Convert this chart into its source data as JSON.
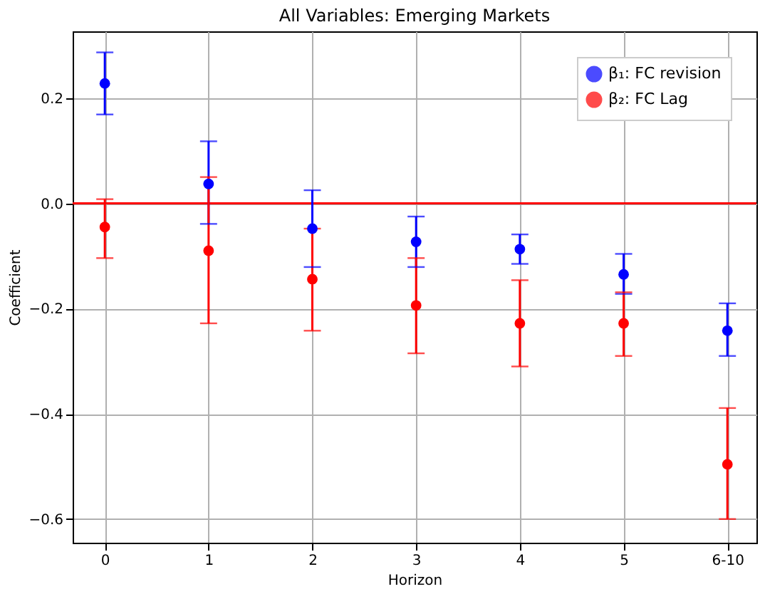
{
  "chart_data": {
    "type": "scatter",
    "title": "All Variables: Emerging Markets",
    "xlabel": "Horizon",
    "ylabel": "Coefficient",
    "categories": [
      "0",
      "1",
      "2",
      "3",
      "4",
      "5",
      "6-10"
    ],
    "series": [
      {
        "name": "β₁: FC revision",
        "color": "#0000ff",
        "values": [
          0.228,
          0.037,
          -0.048,
          -0.073,
          -0.087,
          -0.135,
          -0.242
        ],
        "errors": [
          [
            0.169,
            0.287
          ],
          [
            -0.039,
            0.118
          ],
          [
            -0.121,
            0.025
          ],
          [
            -0.121,
            -0.025
          ],
          [
            -0.115,
            -0.059
          ],
          [
            -0.172,
            -0.096
          ],
          [
            -0.29,
            -0.19
          ]
        ]
      },
      {
        "name": "β₂: FC Lag",
        "color": "#ff0000",
        "values": [
          -0.045,
          -0.09,
          -0.144,
          -0.194,
          -0.228,
          -0.228,
          -0.496
        ],
        "errors": [
          [
            -0.104,
            0.008
          ],
          [
            -0.228,
            0.05
          ],
          [
            -0.242,
            -0.048
          ],
          [
            -0.285,
            -0.104
          ],
          [
            -0.31,
            -0.146
          ],
          [
            -0.29,
            -0.169
          ],
          [
            -0.6,
            -0.389
          ]
        ]
      }
    ],
    "ylim": [
      -0.645,
      0.327
    ],
    "yticks": [
      {
        "value": -0.6,
        "label": "−0.6"
      },
      {
        "value": -0.4,
        "label": "−0.4"
      },
      {
        "value": -0.2,
        "label": "−0.2"
      },
      {
        "value": 0,
        "label": "0.0"
      },
      {
        "value": 0.2,
        "label": "0.2"
      }
    ],
    "ref_lines": [
      {
        "axis": "y",
        "value": 0,
        "color": "#ff0000",
        "line_style": "solid"
      }
    ],
    "grid": true,
    "legend": "top right",
    "marker": "circle"
  }
}
